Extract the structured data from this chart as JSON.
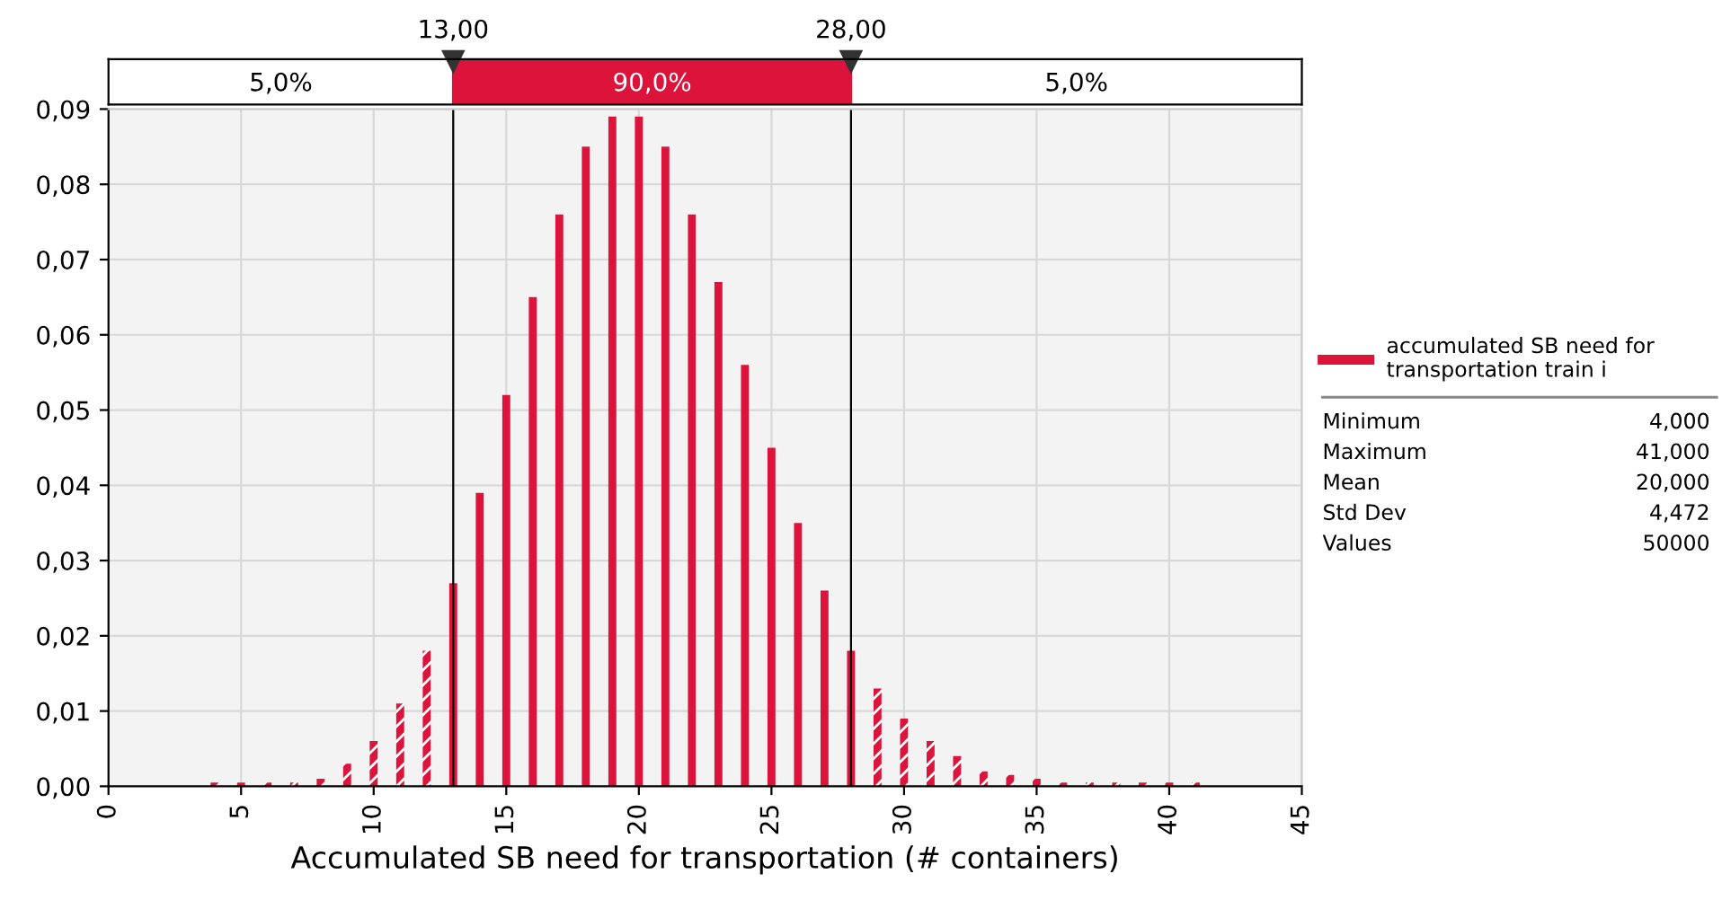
{
  "chart_data": {
    "type": "bar",
    "xlabel": "Accumulated SB need for transportation (# containers)",
    "x": [
      4,
      5,
      6,
      7,
      8,
      9,
      10,
      11,
      12,
      13,
      14,
      15,
      16,
      17,
      18,
      19,
      20,
      21,
      22,
      23,
      24,
      25,
      26,
      27,
      28,
      29,
      30,
      31,
      32,
      33,
      34,
      35,
      36,
      37,
      38,
      39,
      40,
      41
    ],
    "series": [
      {
        "name": "accumulated SB need for transportation train i",
        "color": "#dc143c",
        "values": [
          0.0005,
          0.0005,
          0.0005,
          0.0005,
          0.001,
          0.003,
          0.006,
          0.011,
          0.018,
          0.027,
          0.039,
          0.052,
          0.065,
          0.076,
          0.085,
          0.089,
          0.089,
          0.085,
          0.076,
          0.067,
          0.056,
          0.045,
          0.035,
          0.026,
          0.018,
          0.013,
          0.009,
          0.006,
          0.004,
          0.002,
          0.0015,
          0.001,
          0.0005,
          0.0005,
          0.0005,
          0.0005,
          0.0005,
          0.0005
        ]
      }
    ],
    "xlim": [
      0,
      45
    ],
    "xticks": [
      0,
      5,
      10,
      15,
      20,
      25,
      30,
      35,
      40,
      45
    ],
    "ylim": [
      0,
      0.09
    ],
    "yticks": [
      {
        "value": 0,
        "label": "0,00"
      },
      {
        "value": 0.01,
        "label": "0,01"
      },
      {
        "value": 0.02,
        "label": "0,02"
      },
      {
        "value": 0.03,
        "label": "0,03"
      },
      {
        "value": 0.04,
        "label": "0,04"
      },
      {
        "value": 0.05,
        "label": "0,05"
      },
      {
        "value": 0.06,
        "label": "0,06"
      },
      {
        "value": 0.07,
        "label": "0,07"
      },
      {
        "value": 0.08,
        "label": "0,08"
      },
      {
        "value": 0.09,
        "label": "0,09"
      }
    ],
    "ref_lines": [
      {
        "axis": "x",
        "value": 13,
        "label": "13,00"
      },
      {
        "axis": "x",
        "value": 28,
        "label": "28,00"
      }
    ],
    "annotations": [
      "5,0%",
      "90,0%",
      "5,0%",
      "Minimum\t4,000",
      "Maximum\t41,000",
      "Mean\t20,000",
      "Std Dev\t4,472",
      "Values\t50000"
    ],
    "grid": true,
    "legend": "right"
  }
}
